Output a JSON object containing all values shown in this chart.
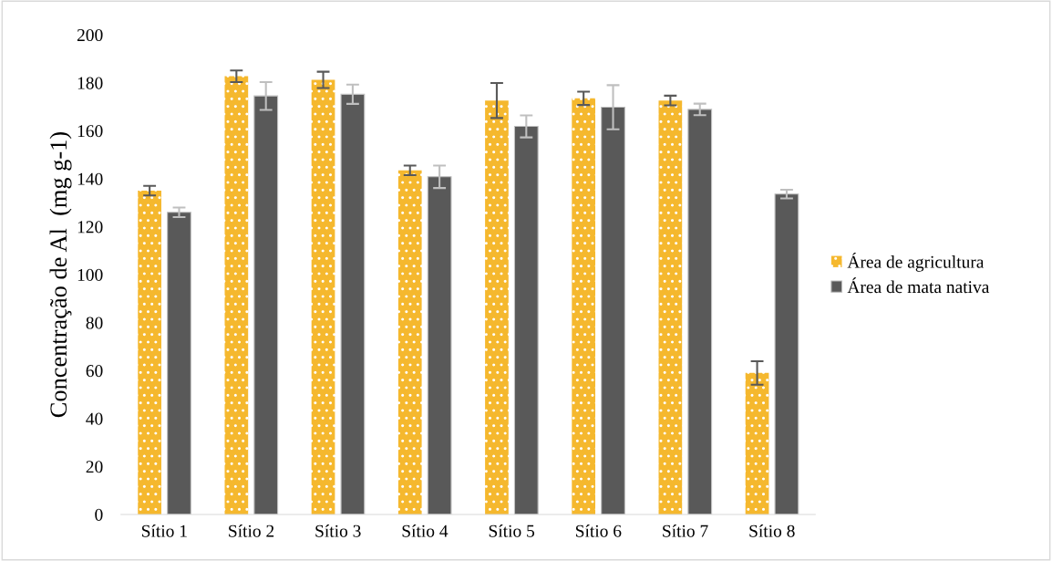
{
  "chart_data": {
    "type": "bar",
    "ylabel": "Concentração de Al  (mg g-1)",
    "categories": [
      "Sítio 1",
      "Sítio 2",
      "Sítio 3",
      "Sítio 4",
      "Sítio 5",
      "Sítio 6",
      "Sítio 7",
      "Sítio 8"
    ],
    "series": [
      {
        "name": "Área de agricultura",
        "color": "#f5b82e",
        "values": [
          135,
          182.7,
          181.2,
          143.5,
          172.6,
          173.5,
          172.6,
          59
        ],
        "errors": [
          2,
          2.4,
          3.4,
          2,
          7.3,
          2.8,
          2,
          4.9
        ]
      },
      {
        "name": "Área de mata nativa",
        "color": "#595959",
        "values": [
          126,
          174.5,
          175.2,
          140.8,
          161.8,
          169.8,
          168.9,
          133.6
        ],
        "errors": [
          2,
          5.8,
          4,
          4.7,
          4.6,
          9.2,
          2.4,
          1.8
        ]
      }
    ],
    "ylim": [
      0,
      200
    ],
    "yticks": [
      0,
      20,
      40,
      60,
      80,
      100,
      120,
      140,
      160,
      180,
      200
    ],
    "grid": false,
    "legend": "right"
  }
}
